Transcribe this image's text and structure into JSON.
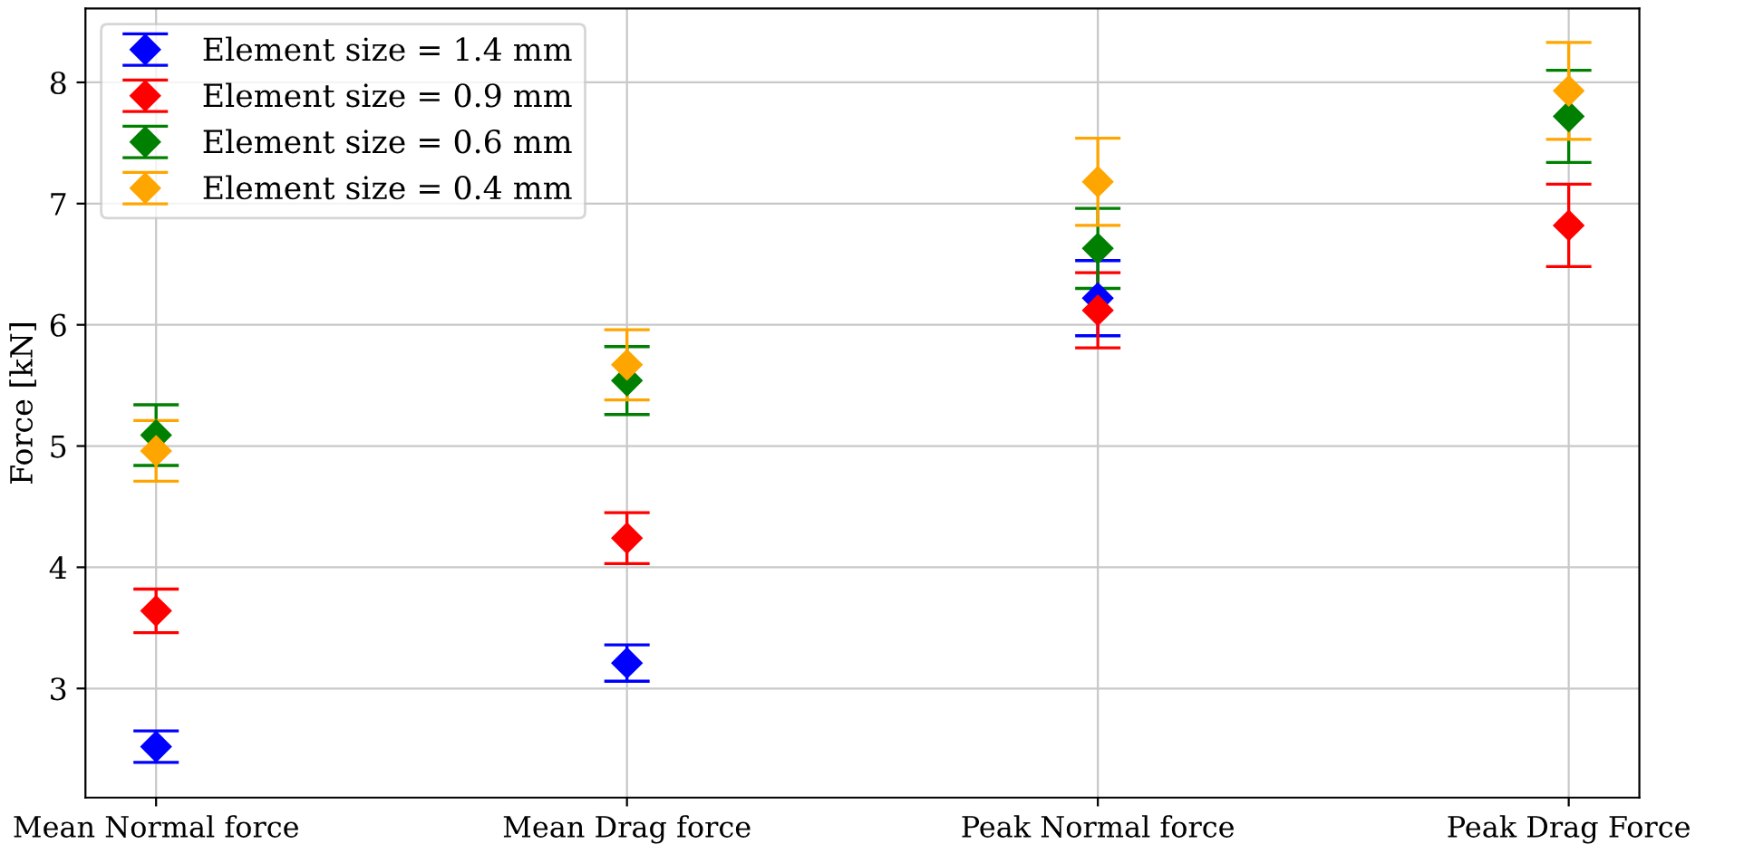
{
  "chart_data": {
    "type": "scatter",
    "ylabel": "Force [kN]",
    "categories": [
      "Mean Normal force",
      "Mean Drag force",
      "Peak Normal force",
      "Peak Drag Force"
    ],
    "series": [
      {
        "name": "Element size = 1.4 mm",
        "color": "#0000ff",
        "values": [
          2.52,
          3.21,
          6.22,
          null
        ],
        "errors": [
          0.13,
          0.15,
          0.31,
          null
        ]
      },
      {
        "name": "Element size = 0.9 mm",
        "color": "#ff0000",
        "values": [
          3.64,
          4.24,
          6.12,
          6.82
        ],
        "errors": [
          0.18,
          0.21,
          0.31,
          0.34
        ]
      },
      {
        "name": "Element size = 0.6 mm",
        "color": "#008000",
        "values": [
          5.09,
          5.54,
          6.63,
          7.72
        ],
        "errors": [
          0.25,
          0.28,
          0.33,
          0.38
        ]
      },
      {
        "name": "Element size = 0.4 mm",
        "color": "#ffa500",
        "values": [
          4.96,
          5.67,
          7.18,
          7.93
        ],
        "errors": [
          0.25,
          0.29,
          0.36,
          0.4
        ]
      }
    ],
    "ylim": [
      2.1,
      8.61
    ],
    "yticks": [
      3,
      4,
      5,
      6,
      7,
      8
    ],
    "grid": true,
    "legend": "top left",
    "marker": "diamond"
  }
}
